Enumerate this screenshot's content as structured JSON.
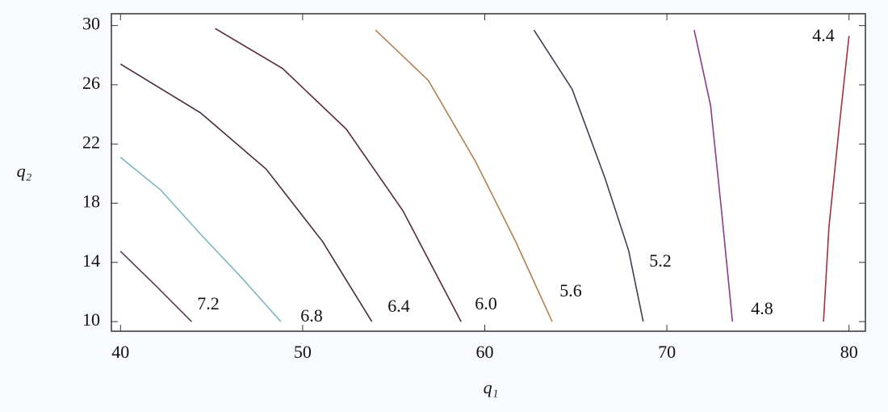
{
  "chart_data": {
    "type": "contour",
    "x_label": "q₁",
    "y_label": "q₂",
    "xlim": [
      39.5,
      80.9
    ],
    "ylim": [
      9.35,
      30.8
    ],
    "xticks": [
      40,
      50,
      60,
      70,
      80
    ],
    "yticks": [
      10,
      14,
      18,
      22,
      26,
      30
    ],
    "series": [
      {
        "name": "7.2",
        "color": "#5a3a5a",
        "x": [
          40,
          42,
          43.9
        ],
        "values": [
          14.75,
          12.35,
          10
        ]
      },
      {
        "name": "6.8",
        "color": "#7ab8c0",
        "x": [
          40,
          42.2,
          44.4,
          46.7,
          48.8
        ],
        "values": [
          21.1,
          18.9,
          15.9,
          12.9,
          10
        ]
      },
      {
        "name": "6.4",
        "color": "#4a2a40",
        "x": [
          40,
          44.4,
          48,
          51.1,
          53.8
        ],
        "values": [
          27.4,
          24.1,
          20.3,
          15.4,
          10
        ]
      },
      {
        "name": "6.0",
        "color": "#5a2a3a",
        "x": [
          45.2,
          48.9,
          52.4,
          55.5,
          58.7
        ],
        "values": [
          29.8,
          27.1,
          23,
          17.5,
          10
        ]
      },
      {
        "name": "5.6",
        "color": "#b08050",
        "x": [
          54,
          56.9,
          59.5,
          61.7,
          63.7
        ],
        "values": [
          29.7,
          26.3,
          20.8,
          15.4,
          10
        ]
      },
      {
        "name": "5.2",
        "color": "#3a4050",
        "x": [
          62.7,
          64.8,
          66.6,
          67.9,
          68.7
        ],
        "values": [
          29.7,
          25.7,
          19.7,
          14.8,
          10
        ]
      },
      {
        "name": "4.8",
        "color": "#8a3a8a",
        "x": [
          71.5,
          72.4,
          73,
          73.6
        ],
        "values": [
          29.7,
          24.6,
          17.5,
          10
        ]
      },
      {
        "name": "4.4",
        "color": "#a03040",
        "x": [
          80,
          79.5,
          78.9,
          78.6
        ],
        "values": [
          29.3,
          23.6,
          16.4,
          10
        ]
      }
    ]
  }
}
